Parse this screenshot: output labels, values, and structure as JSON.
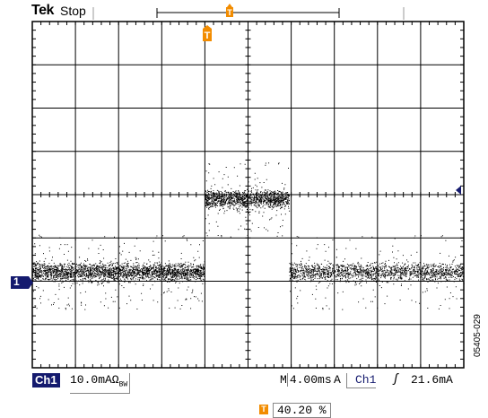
{
  "header": {
    "brand": "Tek",
    "acquisition_status": "Stop",
    "trigger_position_fraction": 0.5
  },
  "scope": {
    "divisions_x": 10,
    "divisions_y": 8,
    "trace_color": "#000000",
    "marker_color": "#f28c00",
    "channel_color": "#141a6e",
    "trace": {
      "low_segments_div": [
        [
          0,
          4.0
        ],
        [
          5.95,
          10
        ]
      ],
      "high_segment_div": [
        4.0,
        5.95
      ],
      "low_level_div": 1.0,
      "high_level_div": 2.0,
      "noise_band_div": 0.35
    }
  },
  "markers": {
    "trigger_marker_icon": "trigger-t-marker-icon",
    "channel1_ground_label": "1",
    "trigger_level_icon": "trigger-level-arrow-icon"
  },
  "footer": {
    "channel_label": "Ch1",
    "vertical_scale": "10.0mAΩ",
    "bandwidth_mark": "BW",
    "timebase_prefix": "M",
    "timebase": "4.00ms",
    "trigger_mode": "A",
    "trigger_source": "Ch1",
    "trigger_slope_glyph": "ʃ",
    "trigger_level": "21.6mA",
    "trigger_position_percent": "40.20 %"
  },
  "figure_id": "05405-029"
}
